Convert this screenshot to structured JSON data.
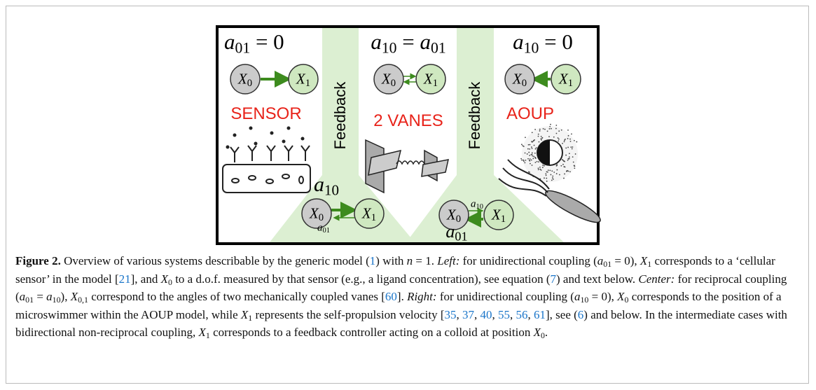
{
  "figure": {
    "panels": [
      {
        "equation": [
          [
            "a",
            "i"
          ],
          [
            "01",
            "s"
          ],
          [
            " = 0",
            ""
          ]
        ],
        "title": "SENSOR"
      },
      {
        "equation": [
          [
            "a",
            "i"
          ],
          [
            "10",
            "s"
          ],
          [
            " = ",
            ""
          ],
          [
            "a",
            "i"
          ],
          [
            "01",
            "s"
          ]
        ],
        "title": "2 VANES"
      },
      {
        "equation": [
          [
            "a",
            "i"
          ],
          [
            "10",
            "s"
          ],
          [
            " = 0",
            ""
          ]
        ],
        "title": "AOUP"
      }
    ],
    "feedback": [
      "Feedback",
      "Feedback"
    ],
    "nodes": [
      [
        [
          "X",
          "i"
        ],
        [
          "0",
          "s"
        ]
      ],
      [
        [
          "X",
          "i"
        ],
        [
          "1",
          "s"
        ]
      ],
      [
        [
          "X",
          "i"
        ],
        [
          "0",
          "s"
        ]
      ],
      [
        [
          "X",
          "i"
        ],
        [
          "1",
          "s"
        ]
      ],
      [
        [
          "X",
          "i"
        ],
        [
          "0",
          "s"
        ]
      ],
      [
        [
          "X",
          "i"
        ],
        [
          "1",
          "s"
        ]
      ],
      [
        [
          "X",
          "i"
        ],
        [
          "0",
          "s"
        ]
      ],
      [
        [
          "X",
          "i"
        ],
        [
          "1",
          "s"
        ]
      ],
      [
        [
          "X",
          "i"
        ],
        [
          "0",
          "s"
        ]
      ],
      [
        [
          "X",
          "i"
        ],
        [
          "1",
          "s"
        ]
      ]
    ],
    "couplings": [
      [
        [
          "a",
          "i"
        ],
        [
          "10",
          "s"
        ]
      ],
      [
        [
          "a",
          "i"
        ],
        [
          "01",
          "s"
        ]
      ],
      [
        [
          "a",
          "i"
        ],
        [
          "10",
          "s"
        ]
      ],
      [
        [
          "a",
          "i"
        ],
        [
          "01",
          "s"
        ]
      ]
    ]
  },
  "caption": {
    "segments": [
      [
        "Figure 2.",
        "b"
      ],
      [
        "  Overview of various systems describable by the generic model (",
        ""
      ],
      [
        "1",
        "l"
      ],
      [
        ") with ",
        ""
      ],
      [
        "n",
        "i"
      ],
      [
        " = 1. ",
        ""
      ],
      [
        "Left:",
        "i"
      ],
      [
        " for unidirectional coupling (",
        ""
      ],
      [
        "a",
        "i"
      ],
      [
        "01",
        "s"
      ],
      [
        " = 0), ",
        ""
      ],
      [
        "X",
        "i"
      ],
      [
        "1",
        "s"
      ],
      [
        " corresponds to a ‘cellular sensor’ in the model [",
        ""
      ],
      [
        "21",
        "l"
      ],
      [
        "], and ",
        ""
      ],
      [
        "X",
        "i"
      ],
      [
        "0",
        "s"
      ],
      [
        " to a d.o.f. measured by that sensor (e.g., a ligand concentration), see equation (",
        ""
      ],
      [
        "7",
        "l"
      ],
      [
        ") and text below. ",
        ""
      ],
      [
        "Center:",
        "i"
      ],
      [
        " for reciprocal coupling (",
        ""
      ],
      [
        "a",
        "i"
      ],
      [
        "01",
        "s"
      ],
      [
        " = ",
        ""
      ],
      [
        "a",
        "i"
      ],
      [
        "10",
        "s"
      ],
      [
        "), ",
        ""
      ],
      [
        "X",
        "i"
      ],
      [
        "0,1",
        "s"
      ],
      [
        " correspond to the angles of two mechanically coupled vanes [",
        ""
      ],
      [
        "60",
        "l"
      ],
      [
        "]. ",
        ""
      ],
      [
        "Right:",
        "i"
      ],
      [
        " for unidirectional coupling (",
        ""
      ],
      [
        "a",
        "i"
      ],
      [
        "10",
        "s"
      ],
      [
        " = 0), ",
        ""
      ],
      [
        "X",
        "i"
      ],
      [
        "0",
        "s"
      ],
      [
        " corresponds to the position of a microswimmer within the AOUP model, while ",
        ""
      ],
      [
        "X",
        "i"
      ],
      [
        "1",
        "s"
      ],
      [
        " represents the self-propulsion velocity [",
        ""
      ],
      [
        "35",
        "l"
      ],
      [
        ", ",
        ""
      ],
      [
        "37",
        "l"
      ],
      [
        ", ",
        ""
      ],
      [
        "40",
        "l"
      ],
      [
        ", ",
        ""
      ],
      [
        "55",
        "l"
      ],
      [
        ", ",
        ""
      ],
      [
        "56",
        "l"
      ],
      [
        ", ",
        ""
      ],
      [
        "61",
        "l"
      ],
      [
        "], see (",
        ""
      ],
      [
        "6",
        "l"
      ],
      [
        ") and below. In the intermediate cases with bidirectional non-reciprocal coupling, ",
        ""
      ],
      [
        "X",
        "i"
      ],
      [
        "1",
        "s"
      ],
      [
        " corresponds to a feedback controller acting on a colloid at position ",
        ""
      ],
      [
        "X",
        "i"
      ],
      [
        "0",
        "s"
      ],
      [
        ".",
        ""
      ]
    ]
  }
}
